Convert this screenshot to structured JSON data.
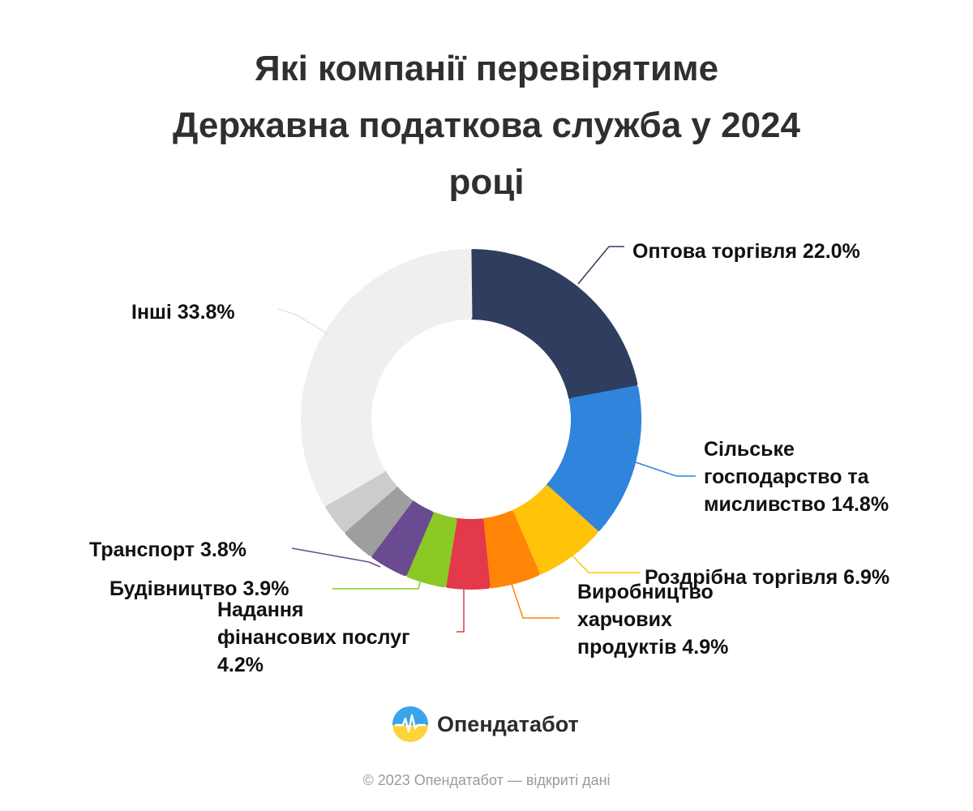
{
  "chart_data": {
    "type": "pie",
    "variant": "donut",
    "title_lines": [
      "Які компанії перевірятиме",
      "Державна податкова служба у 2024",
      "році"
    ],
    "slices": [
      {
        "label": "Оптова торгівля",
        "value": 22.0,
        "color": "#2f3d5e",
        "label_lines": [
          "Оптова торгівля 22.0%"
        ]
      },
      {
        "label": "Сільське господарство та мисливство",
        "value": 14.8,
        "color": "#2f84dc",
        "label_lines": [
          "Сільське",
          "господарство та",
          "мисливство 14.8%"
        ]
      },
      {
        "label": "Роздрібна торгівля",
        "value": 6.9,
        "color": "#ffc30a",
        "label_lines": [
          "Роздрібна торгівля 6.9%"
        ]
      },
      {
        "label": "Виробництво харчових продуктів",
        "value": 4.9,
        "color": "#ff8507",
        "label_lines": [
          "Виробництво",
          "харчових",
          "продуктів 4.9%"
        ]
      },
      {
        "label": "Надання фінансових послуг",
        "value": 4.2,
        "color": "#e4394a",
        "label_lines": [
          "Надання",
          "фінансових послуг",
          "4.2%"
        ]
      },
      {
        "label": "Будівництво",
        "value": 3.9,
        "color": "#8cc826",
        "label_lines": [
          "Будівництво 3.9%"
        ]
      },
      {
        "label": "Транспорт",
        "value": 3.8,
        "color": "#6a4a90",
        "label_lines": [
          "Транспорт 3.8%"
        ]
      },
      {
        "label": "",
        "value": 3.4,
        "color": "#9e9e9e",
        "label_lines": []
      },
      {
        "label": "",
        "value": 3.1,
        "color": "#cccccc",
        "label_lines": []
      },
      {
        "label": "Інші",
        "value": 33.8,
        "color": "#efefef",
        "label_lines": [
          "Інші 33.8%"
        ]
      }
    ]
  },
  "brand": {
    "name": "Опендатабот"
  },
  "footer": {
    "text": "© 2023 Опендатабот — відкриті дані"
  }
}
